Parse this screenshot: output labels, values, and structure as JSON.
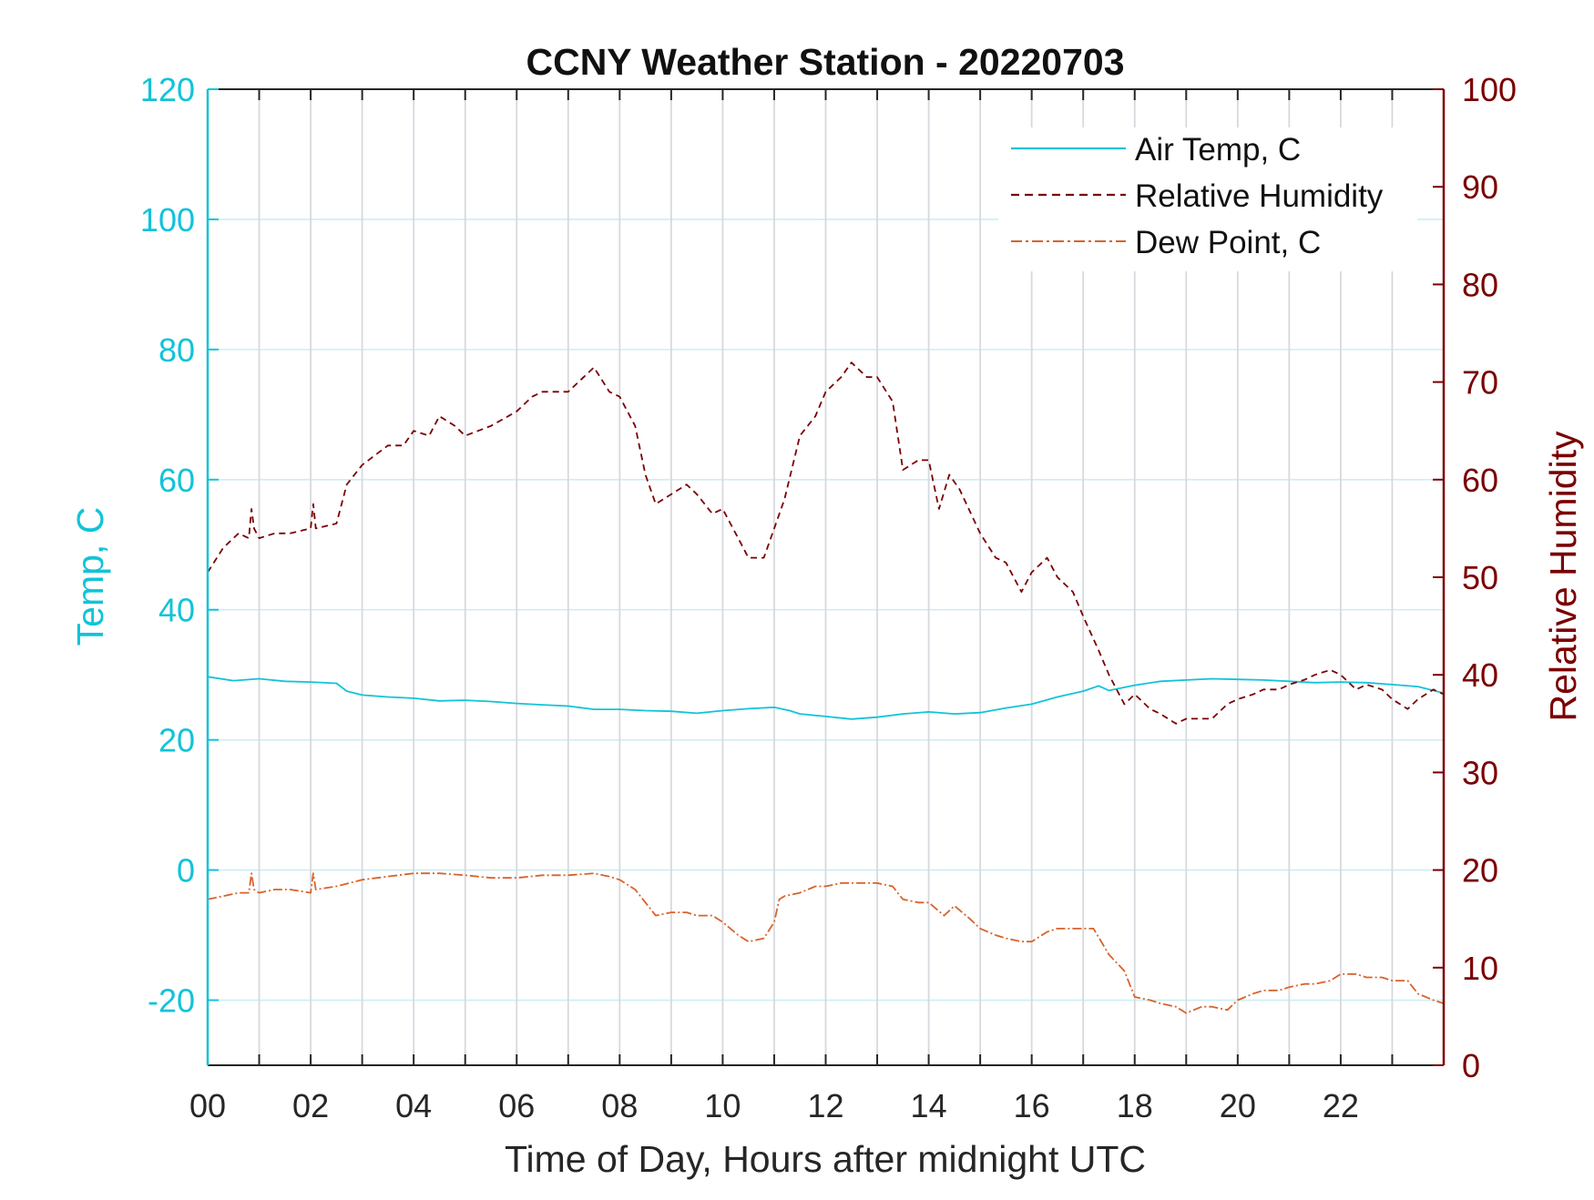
{
  "chart_data": {
    "type": "line",
    "title": "CCNY Weather Station - 20220703",
    "xlabel": "Time of Day, Hours after midnight UTC",
    "ylabel_left": "Temp, C",
    "ylabel_right": "Relative Humidity",
    "xlim": [
      0,
      24
    ],
    "ylim_left": [
      -30,
      120
    ],
    "ylim_right": [
      0,
      100
    ],
    "x_tick_labels": [
      "00",
      "02",
      "04",
      "06",
      "08",
      "10",
      "12",
      "14",
      "16",
      "18",
      "20",
      "22"
    ],
    "y_left_ticks": [
      -20,
      0,
      20,
      40,
      60,
      80,
      100,
      120
    ],
    "y_right_ticks": [
      0,
      10,
      20,
      30,
      40,
      50,
      60,
      70,
      80,
      90,
      100
    ],
    "grid": true,
    "legend_position": "top-right",
    "colors": {
      "air_temp": "#12c3d8",
      "relative_humidity": "#7a0000",
      "dew_point": "#d9622b",
      "left_axis": "#12c3d8",
      "right_axis": "#7a0000",
      "grid_vertical": "#d6d9dd",
      "grid_horizontal": "#cdeef3"
    },
    "series": [
      {
        "name": "Air Temp, C",
        "axis": "left",
        "style": "solid",
        "x": [
          0,
          0.5,
          1,
          1.5,
          2,
          2.5,
          2.7,
          3,
          3.5,
          4,
          4.5,
          5,
          5.5,
          6,
          6.5,
          7,
          7.5,
          8,
          8.5,
          9,
          9.5,
          10,
          10.5,
          11,
          11.3,
          11.5,
          12,
          12.5,
          13,
          13.5,
          14,
          14.5,
          15,
          15.5,
          16,
          16.5,
          17,
          17.3,
          17.5,
          18,
          18.5,
          19,
          19.5,
          20,
          20.5,
          21,
          21.5,
          22,
          22.5,
          23,
          23.5,
          24
        ],
        "values": [
          29.7,
          29.1,
          29.4,
          29.0,
          28.9,
          28.7,
          27.5,
          26.9,
          26.6,
          26.4,
          26.0,
          26.1,
          25.9,
          25.6,
          25.4,
          25.2,
          24.7,
          24.7,
          24.5,
          24.4,
          24.1,
          24.5,
          24.8,
          25.0,
          24.5,
          24.0,
          23.6,
          23.2,
          23.5,
          24.0,
          24.3,
          24.0,
          24.2,
          24.9,
          25.5,
          26.6,
          27.5,
          28.3,
          27.6,
          28.4,
          29.0,
          29.2,
          29.4,
          29.3,
          29.2,
          29.0,
          28.8,
          28.9,
          28.8,
          28.5,
          28.2,
          27.2
        ]
      },
      {
        "name": "Relative Humidity",
        "axis": "right",
        "style": "dashed",
        "x": [
          0,
          0.3,
          0.6,
          0.8,
          0.85,
          0.9,
          1.0,
          1.3,
          1.6,
          2.0,
          2.05,
          2.1,
          2.5,
          2.7,
          3.0,
          3.5,
          3.8,
          4.0,
          4.3,
          4.5,
          4.8,
          5.0,
          5.5,
          6.0,
          6.3,
          6.5,
          7.0,
          7.3,
          7.5,
          7.8,
          8.0,
          8.3,
          8.5,
          8.7,
          9.0,
          9.3,
          9.5,
          9.8,
          10.0,
          10.3,
          10.5,
          10.8,
          11.0,
          11.2,
          11.5,
          11.8,
          12.0,
          12.3,
          12.5,
          12.8,
          13.0,
          13.3,
          13.5,
          13.8,
          14.0,
          14.2,
          14.4,
          14.6,
          15.0,
          15.3,
          15.5,
          15.8,
          16.0,
          16.3,
          16.5,
          16.8,
          17.0,
          17.3,
          17.5,
          17.8,
          18.0,
          18.3,
          18.5,
          18.8,
          19.0,
          19.3,
          19.5,
          19.8,
          20.0,
          20.3,
          20.5,
          20.8,
          21.0,
          21.3,
          21.5,
          21.8,
          22.0,
          22.3,
          22.5,
          22.8,
          23.0,
          23.3,
          23.5,
          23.8,
          24.0
        ],
        "values": [
          50.5,
          53.0,
          54.5,
          54.0,
          57.0,
          55.0,
          54.0,
          54.5,
          54.5,
          55.0,
          57.5,
          55.0,
          55.5,
          59.5,
          61.5,
          63.5,
          63.5,
          65.0,
          64.5,
          66.5,
          65.5,
          64.5,
          65.5,
          67.0,
          68.5,
          69.0,
          69.0,
          70.5,
          71.5,
          69.0,
          68.5,
          65.5,
          60.5,
          57.5,
          58.5,
          59.5,
          58.5,
          56.5,
          57.0,
          54.0,
          52.0,
          52.0,
          55.0,
          58.0,
          64.5,
          66.5,
          69.0,
          70.5,
          72.0,
          70.5,
          70.5,
          68.0,
          61.0,
          62.0,
          62.0,
          57.0,
          60.5,
          59.0,
          54.5,
          52.0,
          51.5,
          48.5,
          50.5,
          52.0,
          50.0,
          48.5,
          46.0,
          42.5,
          40.0,
          37.0,
          38.0,
          36.5,
          36.0,
          35.0,
          35.5,
          35.5,
          35.5,
          37.0,
          37.5,
          38.0,
          38.5,
          38.5,
          39.0,
          39.5,
          40.0,
          40.5,
          40.0,
          38.5,
          39.0,
          38.5,
          37.5,
          36.5,
          37.5,
          38.5,
          38.0
        ]
      },
      {
        "name": "Dew Point, C",
        "axis": "left",
        "style": "dashdot",
        "x": [
          0,
          0.3,
          0.6,
          0.8,
          0.85,
          0.9,
          1.0,
          1.3,
          1.6,
          2.0,
          2.05,
          2.1,
          2.5,
          3.0,
          3.5,
          4.0,
          4.5,
          5.0,
          5.5,
          6.0,
          6.5,
          7.0,
          7.5,
          7.8,
          8.0,
          8.3,
          8.5,
          8.7,
          9.0,
          9.3,
          9.5,
          9.8,
          10.0,
          10.3,
          10.5,
          10.8,
          11.0,
          11.1,
          11.2,
          11.5,
          11.8,
          12.0,
          12.3,
          12.5,
          12.8,
          13.0,
          13.3,
          13.5,
          13.8,
          14.0,
          14.3,
          14.5,
          14.8,
          15.0,
          15.3,
          15.5,
          15.8,
          16.0,
          16.3,
          16.5,
          16.8,
          17.0,
          17.2,
          17.5,
          17.8,
          18.0,
          18.3,
          18.5,
          18.8,
          19.0,
          19.3,
          19.5,
          19.8,
          20.0,
          20.3,
          20.5,
          20.8,
          21.0,
          21.3,
          21.5,
          21.8,
          22.0,
          22.3,
          22.5,
          22.8,
          23.0,
          23.3,
          23.5,
          23.8,
          24.0
        ],
        "values": [
          -4.5,
          -4.0,
          -3.5,
          -3.5,
          -0.5,
          -3.0,
          -3.5,
          -3.0,
          -3.0,
          -3.5,
          -0.5,
          -3.0,
          -2.5,
          -1.5,
          -1.0,
          -0.5,
          -0.5,
          -0.8,
          -1.2,
          -1.2,
          -0.8,
          -0.8,
          -0.5,
          -1.0,
          -1.5,
          -3.0,
          -5.0,
          -7.0,
          -6.5,
          -6.5,
          -7.0,
          -7.0,
          -8.0,
          -10.0,
          -11.0,
          -10.5,
          -8.0,
          -4.5,
          -4.0,
          -3.5,
          -2.5,
          -2.5,
          -2.0,
          -2.0,
          -2.0,
          -2.0,
          -2.5,
          -4.5,
          -5.0,
          -5.0,
          -7.0,
          -5.5,
          -7.5,
          -9.0,
          -10.0,
          -10.5,
          -11.0,
          -11.0,
          -9.5,
          -9.0,
          -9.0,
          -9.0,
          -9.0,
          -13.0,
          -15.5,
          -19.5,
          -20.0,
          -20.5,
          -21.0,
          -22.0,
          -21.0,
          -21.0,
          -21.5,
          -20.0,
          -19.0,
          -18.5,
          -18.5,
          -18.0,
          -17.5,
          -17.5,
          -17.0,
          -16.0,
          -16.0,
          -16.5,
          -16.5,
          -17.0,
          -17.0,
          -19.0,
          -20.0,
          -20.5
        ]
      }
    ]
  }
}
